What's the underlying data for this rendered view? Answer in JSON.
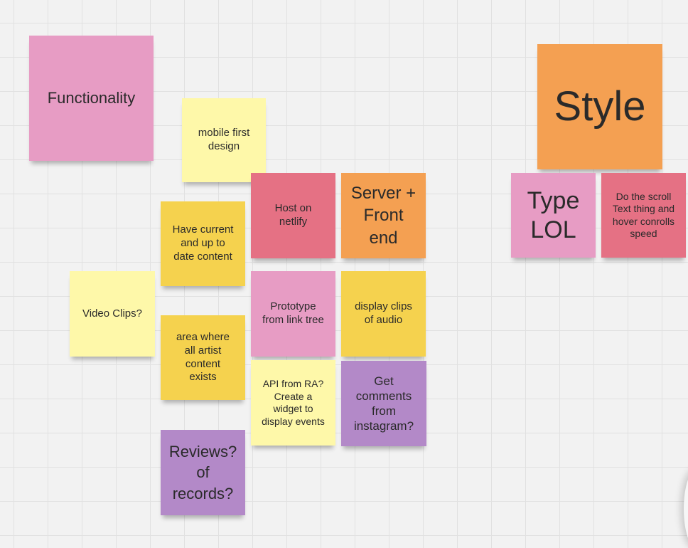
{
  "board": {
    "notes": [
      {
        "id": "functionality",
        "text": "Functionality",
        "color": "#e79cc4"
      },
      {
        "id": "mobile-first",
        "text": "mobile first\ndesign",
        "color": "#fef8a9"
      },
      {
        "id": "host-netlify",
        "text": "Host on\nnetlify",
        "color": "#e57184"
      },
      {
        "id": "server-frontend",
        "text": "Server +\nFront\nend",
        "color": "#f4a052"
      },
      {
        "id": "current-content",
        "text": "Have current\nand up to\ndate content",
        "color": "#f5d24e"
      },
      {
        "id": "video-clips",
        "text": "Video Clips?",
        "color": "#fef8a9"
      },
      {
        "id": "prototype-linktree",
        "text": "Prototype\nfrom link tree",
        "color": "#e79cc4"
      },
      {
        "id": "display-audio",
        "text": "display clips\nof audio",
        "color": "#f5d24e"
      },
      {
        "id": "artist-content",
        "text": "area where\nall artist\ncontent\nexists",
        "color": "#f5d24e"
      },
      {
        "id": "api-ra",
        "text": "API from RA?\nCreate a\nwidget to\ndisplay events",
        "color": "#fef8a9"
      },
      {
        "id": "instagram-comments",
        "text": "Get\ncomments\nfrom\ninstagram?",
        "color": "#b389c8"
      },
      {
        "id": "reviews-records",
        "text": "Reviews?\nof\nrecords?",
        "color": "#b389c8"
      },
      {
        "id": "style",
        "text": "Style",
        "color": "#f4a052"
      },
      {
        "id": "type-lol",
        "text": "Type\nLOL",
        "color": "#e79cc4"
      },
      {
        "id": "scroll-text",
        "text": "Do the scroll\nText thing and\nhover conrolls\nspeed",
        "color": "#e57184"
      }
    ]
  }
}
